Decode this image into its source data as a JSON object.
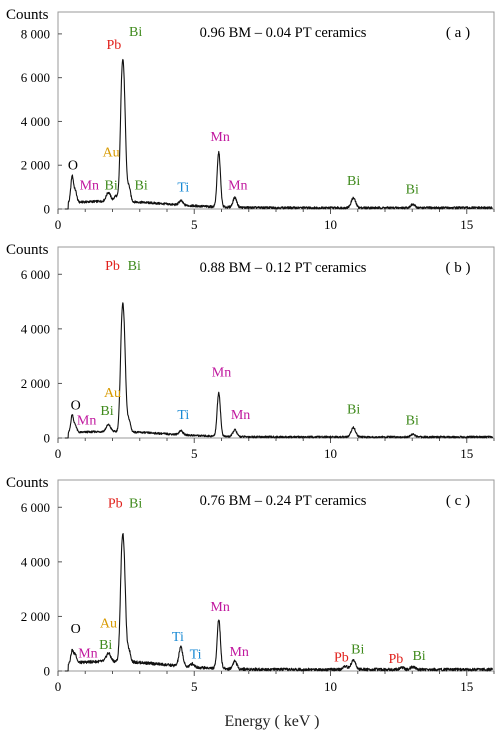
{
  "chart_data": [
    {
      "type": "line",
      "panel_label": "( a )",
      "title": "0.96 BM – 0.04 PT  ceramics",
      "ylabel": "Counts",
      "xlim": [
        0,
        16
      ],
      "ylim": [
        0,
        9000
      ],
      "x_ticks": [
        0,
        5,
        10,
        15
      ],
      "y_ticks": [
        {
          "v": 0,
          "label": "0"
        },
        {
          "v": 2000,
          "label": "2 000"
        },
        {
          "v": 4000,
          "label": "4 000"
        },
        {
          "v": 6000,
          "label": "6 000"
        },
        {
          "v": 8000,
          "label": "8 000"
        }
      ],
      "baseline": 300,
      "peaks": [
        [
          0.52,
          1200,
          0.05
        ],
        [
          0.64,
          500,
          0.05
        ],
        [
          1.85,
          400,
          0.08
        ],
        [
          2.12,
          250,
          0.06
        ],
        [
          2.34,
          4600,
          0.06
        ],
        [
          2.43,
          4000,
          0.06
        ],
        [
          2.6,
          700,
          0.06
        ],
        [
          4.51,
          200,
          0.07
        ],
        [
          5.9,
          2500,
          0.06
        ],
        [
          6.49,
          450,
          0.07
        ],
        [
          10.84,
          450,
          0.08
        ],
        [
          13.02,
          150,
          0.08
        ]
      ],
      "annotations": [
        {
          "text": "O",
          "x": 0.55,
          "y": 1800,
          "color": "#000000"
        },
        {
          "text": "Mn",
          "x": 1.15,
          "y": 900,
          "color": "#c0179e"
        },
        {
          "text": "Au",
          "x": 1.95,
          "y": 2400,
          "color": "#d89a00"
        },
        {
          "text": "Bi",
          "x": 1.95,
          "y": 900,
          "color": "#3f8a1c"
        },
        {
          "text": "Bi",
          "x": 3.05,
          "y": 900,
          "color": "#3f8a1c"
        },
        {
          "text": "Pb",
          "x": 2.05,
          "y": 7300,
          "color": "#e0201b"
        },
        {
          "text": "Bi",
          "x": 2.85,
          "y": 7900,
          "color": "#3f8a1c"
        },
        {
          "text": "Ti",
          "x": 4.6,
          "y": 800,
          "color": "#1a8ad4"
        },
        {
          "text": "Mn",
          "x": 5.95,
          "y": 3100,
          "color": "#c0179e"
        },
        {
          "text": "Mn",
          "x": 6.6,
          "y": 900,
          "color": "#c0179e"
        },
        {
          "text": "Bi",
          "x": 10.85,
          "y": 1100,
          "color": "#3f8a1c"
        },
        {
          "text": "Bi",
          "x": 13.0,
          "y": 700,
          "color": "#3f8a1c"
        }
      ]
    },
    {
      "type": "line",
      "panel_label": "( b )",
      "title": "0.88 BM – 0.12 PT  ceramics",
      "ylabel": "Counts",
      "xlim": [
        0,
        16
      ],
      "ylim": [
        0,
        7000
      ],
      "x_ticks": [
        0,
        5,
        10,
        15
      ],
      "y_ticks": [
        {
          "v": 0,
          "label": "0"
        },
        {
          "v": 2000,
          "label": "2 000"
        },
        {
          "v": 4000,
          "label": "4 000"
        },
        {
          "v": 6000,
          "label": "6 000"
        }
      ],
      "baseline": 200,
      "peaks": [
        [
          0.52,
          650,
          0.05
        ],
        [
          0.64,
          250,
          0.05
        ],
        [
          1.85,
          250,
          0.08
        ],
        [
          2.34,
          3300,
          0.06
        ],
        [
          2.43,
          2900,
          0.06
        ],
        [
          2.6,
          450,
          0.06
        ],
        [
          4.51,
          150,
          0.07
        ],
        [
          5.9,
          1600,
          0.06
        ],
        [
          6.49,
          250,
          0.07
        ],
        [
          10.84,
          350,
          0.08
        ],
        [
          13.02,
          100,
          0.08
        ]
      ],
      "annotations": [
        {
          "text": "O",
          "x": 0.65,
          "y": 1050,
          "color": "#000000"
        },
        {
          "text": "Mn",
          "x": 1.05,
          "y": 500,
          "color": "#c0179e"
        },
        {
          "text": "Au",
          "x": 2.0,
          "y": 1500,
          "color": "#d89a00"
        },
        {
          "text": "Bi",
          "x": 1.8,
          "y": 850,
          "color": "#3f8a1c"
        },
        {
          "text": "Pb",
          "x": 2.0,
          "y": 6150,
          "color": "#e0201b"
        },
        {
          "text": "Bi",
          "x": 2.8,
          "y": 6150,
          "color": "#3f8a1c"
        },
        {
          "text": "Ti",
          "x": 4.6,
          "y": 700,
          "color": "#1a8ad4"
        },
        {
          "text": "Mn",
          "x": 6.0,
          "y": 2250,
          "color": "#c0179e"
        },
        {
          "text": "Mn",
          "x": 6.7,
          "y": 700,
          "color": "#c0179e"
        },
        {
          "text": "Bi",
          "x": 10.85,
          "y": 900,
          "color": "#3f8a1c"
        },
        {
          "text": "Bi",
          "x": 13.0,
          "y": 500,
          "color": "#3f8a1c"
        }
      ]
    },
    {
      "type": "line",
      "panel_label": "( c )",
      "title": "0.76 BM – 0.24 PT  ceramics",
      "ylabel": "Counts",
      "xlim": [
        0,
        16
      ],
      "ylim": [
        0,
        7000
      ],
      "x_ticks": [
        0,
        5,
        10,
        15
      ],
      "y_ticks": [
        {
          "v": 0,
          "label": "0"
        },
        {
          "v": 2000,
          "label": "2 000"
        },
        {
          "v": 4000,
          "label": "4 000"
        },
        {
          "v": 6000,
          "label": "6 000"
        }
      ],
      "baseline": 300,
      "peaks": [
        [
          0.52,
          450,
          0.05
        ],
        [
          0.64,
          300,
          0.05
        ],
        [
          1.85,
          300,
          0.08
        ],
        [
          2.34,
          3300,
          0.06
        ],
        [
          2.43,
          2900,
          0.06
        ],
        [
          2.6,
          450,
          0.06
        ],
        [
          4.51,
          700,
          0.07
        ],
        [
          4.93,
          120,
          0.07
        ],
        [
          5.9,
          1800,
          0.06
        ],
        [
          6.49,
          300,
          0.07
        ],
        [
          10.55,
          120,
          0.08
        ],
        [
          10.84,
          350,
          0.08
        ],
        [
          12.61,
          80,
          0.08
        ],
        [
          13.02,
          100,
          0.08
        ]
      ],
      "annotations": [
        {
          "text": "O",
          "x": 0.65,
          "y": 1400,
          "color": "#000000"
        },
        {
          "text": "Mn",
          "x": 1.1,
          "y": 500,
          "color": "#c0179e"
        },
        {
          "text": "Au",
          "x": 1.85,
          "y": 1600,
          "color": "#d89a00"
        },
        {
          "text": "Bi",
          "x": 1.75,
          "y": 800,
          "color": "#3f8a1c"
        },
        {
          "text": "Pb",
          "x": 2.1,
          "y": 6000,
          "color": "#e0201b"
        },
        {
          "text": "Bi",
          "x": 2.85,
          "y": 6000,
          "color": "#3f8a1c"
        },
        {
          "text": "Ti",
          "x": 4.4,
          "y": 1100,
          "color": "#1a8ad4"
        },
        {
          "text": "Ti",
          "x": 5.05,
          "y": 450,
          "color": "#1a8ad4"
        },
        {
          "text": "Mn",
          "x": 5.95,
          "y": 2200,
          "color": "#c0179e"
        },
        {
          "text": "Mn",
          "x": 6.65,
          "y": 550,
          "color": "#c0179e"
        },
        {
          "text": "Pb",
          "x": 10.4,
          "y": 350,
          "color": "#e0201b"
        },
        {
          "text": "Bi",
          "x": 11.0,
          "y": 650,
          "color": "#3f8a1c"
        },
        {
          "text": "Pb",
          "x": 12.4,
          "y": 300,
          "color": "#e0201b"
        },
        {
          "text": "Bi",
          "x": 13.25,
          "y": 400,
          "color": "#3f8a1c"
        }
      ]
    }
  ],
  "xlabel": "Energy ( keV )",
  "colors": {
    "frame": "#999999",
    "line": "#111111",
    "Pb": "#e0201b",
    "Bi": "#3f8a1c",
    "Mn": "#c0179e",
    "Au": "#d89a00",
    "Ti": "#1a8ad4",
    "O": "#000000"
  }
}
